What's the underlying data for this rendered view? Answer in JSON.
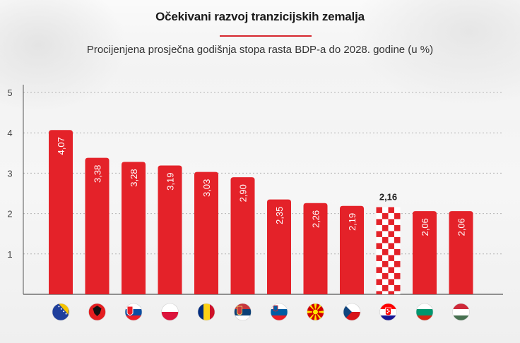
{
  "header": {
    "title": "Očekivani razvoj tranzicijskih zemalja",
    "subtitle": "Procijenjena prosječna godišnja stopa rasta BDP-a do 2028. godine (u %)"
  },
  "colors": {
    "bar": "#e42229",
    "highlight_check_red": "#e42229",
    "highlight_check_white": "#ffffff",
    "grid": "#b5b5b5",
    "axis": "#555555",
    "accent_line": "#d6262e"
  },
  "chart_data": {
    "type": "bar",
    "title": "Očekivani razvoj tranzicijskih zemalja",
    "subtitle": "Procijenjena prosječna godišnja stopa rasta BDP-a do 2028. godine (u %)",
    "xlabel": "",
    "ylabel": "",
    "ylim": [
      0,
      5
    ],
    "yticks": [
      "1",
      "2",
      "3",
      "4",
      "5"
    ],
    "grid": true,
    "categories": [
      "Bosnia and Herzegovina",
      "Albania",
      "Slovakia",
      "Poland",
      "Romania",
      "Serbia",
      "Slovenia",
      "North Macedonia",
      "Czechia",
      "Croatia",
      "Bulgaria",
      "Hungary"
    ],
    "flag_icons": [
      "flag-bosnia-icon",
      "flag-albania-icon",
      "flag-slovakia-icon",
      "flag-poland-icon",
      "flag-romania-icon",
      "flag-serbia-icon",
      "flag-slovenia-icon",
      "flag-north-macedonia-icon",
      "flag-czechia-icon",
      "flag-croatia-icon",
      "flag-bulgaria-icon",
      "flag-hungary-icon"
    ],
    "values": [
      4.07,
      3.38,
      3.28,
      3.19,
      3.03,
      2.9,
      2.35,
      2.26,
      2.19,
      2.16,
      2.06,
      2.06
    ],
    "value_labels": [
      "4,07",
      "3,38",
      "3,28",
      "3,19",
      "3,03",
      "2,90",
      "2,35",
      "2,26",
      "2,19",
      "2,16",
      "2,06",
      "2,06"
    ],
    "highlighted_category": "Croatia",
    "highlight_style": "red-white checkerboard"
  }
}
